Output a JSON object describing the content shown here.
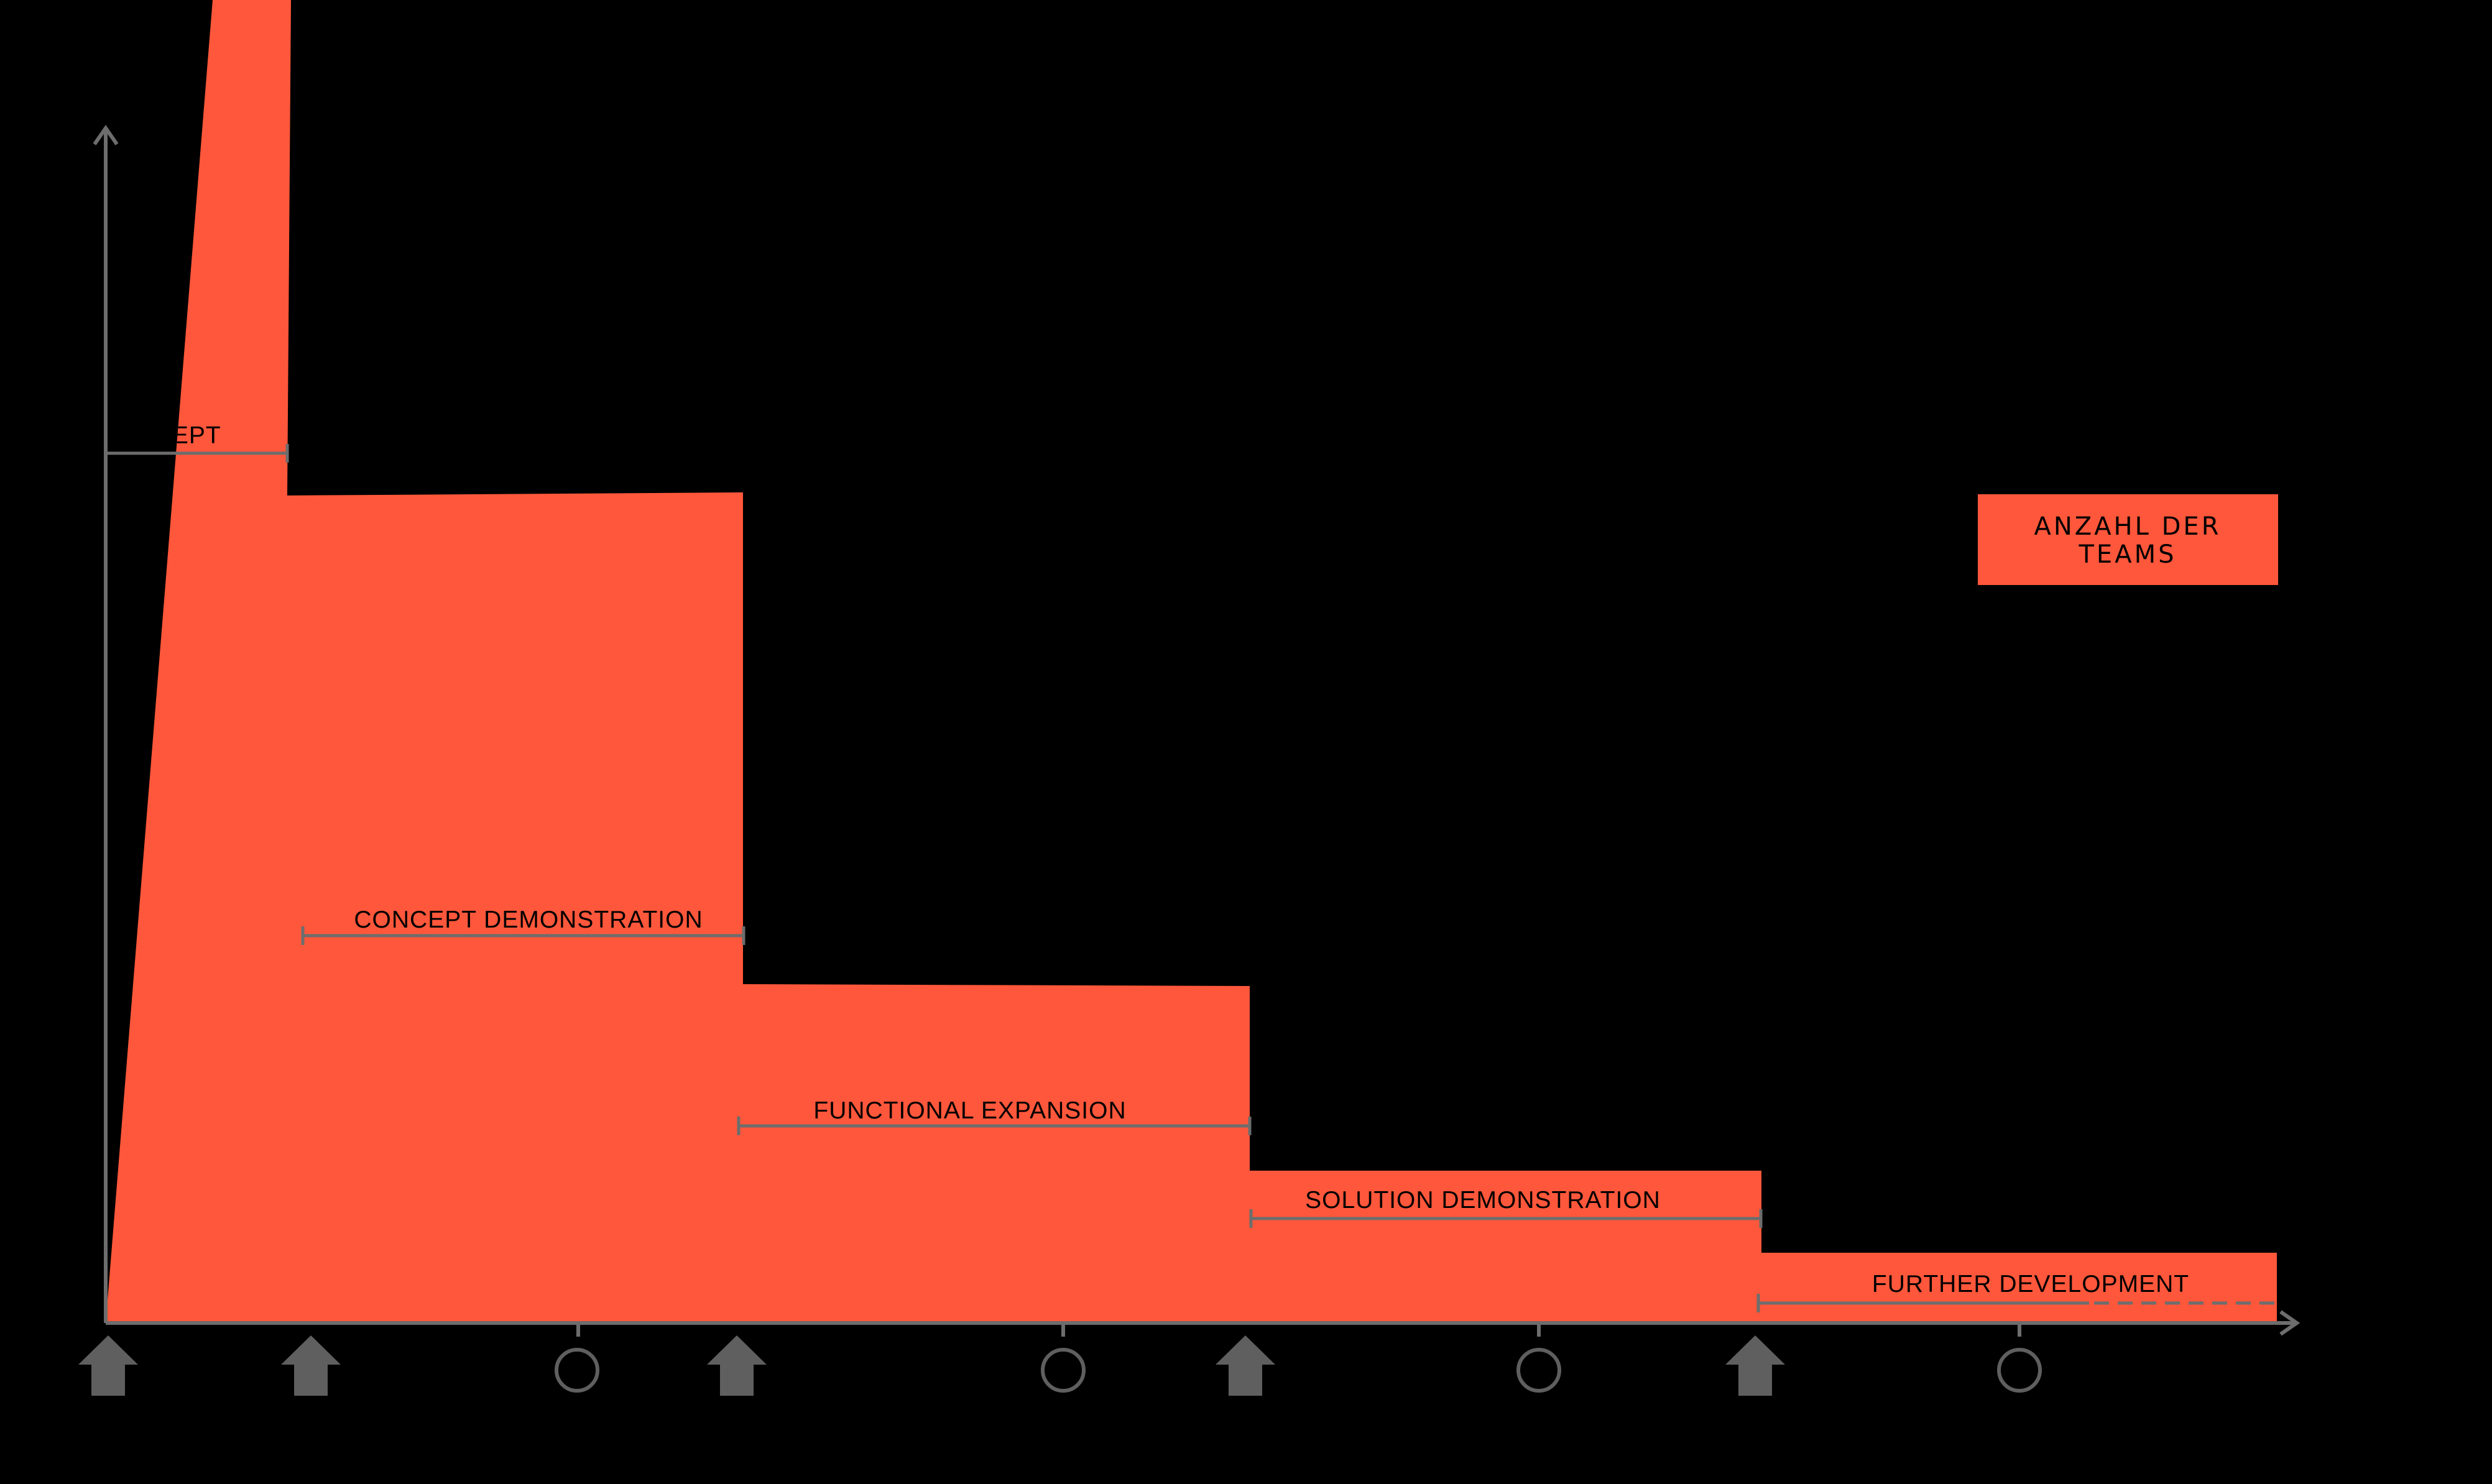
{
  "colors": {
    "background": "#000000",
    "area_fill": "#ff573b",
    "axis": "#6d6d6d",
    "marker": "#5f5f5f",
    "label_text": "#000000"
  },
  "legend": {
    "line1": "ANZAHL DER",
    "line2": "TEAMS"
  },
  "phases": [
    {
      "label": "CONCEPT",
      "ongoing": false
    },
    {
      "label": "CONCEPT DEMONSTRATION",
      "ongoing": false
    },
    {
      "label": "FUNCTIONAL EXPANSION",
      "ongoing": false
    },
    {
      "label": "SOLUTION DEMONSTRATION",
      "ongoing": false
    },
    {
      "label": "FURTHER DEVELOPMENT",
      "ongoing": true
    }
  ],
  "timeline_markers": [
    {
      "type": "arrow-up",
      "name": "milestone-arrow-icon"
    },
    {
      "type": "arrow-up",
      "name": "milestone-arrow-icon"
    },
    {
      "type": "circle",
      "name": "checkpoint-circle-icon"
    },
    {
      "type": "arrow-up",
      "name": "milestone-arrow-icon"
    },
    {
      "type": "circle",
      "name": "checkpoint-circle-icon"
    },
    {
      "type": "arrow-up",
      "name": "milestone-arrow-icon"
    },
    {
      "type": "circle",
      "name": "checkpoint-circle-icon"
    },
    {
      "type": "arrow-up",
      "name": "milestone-arrow-icon"
    },
    {
      "type": "circle",
      "name": "checkpoint-circle-icon"
    }
  ]
}
